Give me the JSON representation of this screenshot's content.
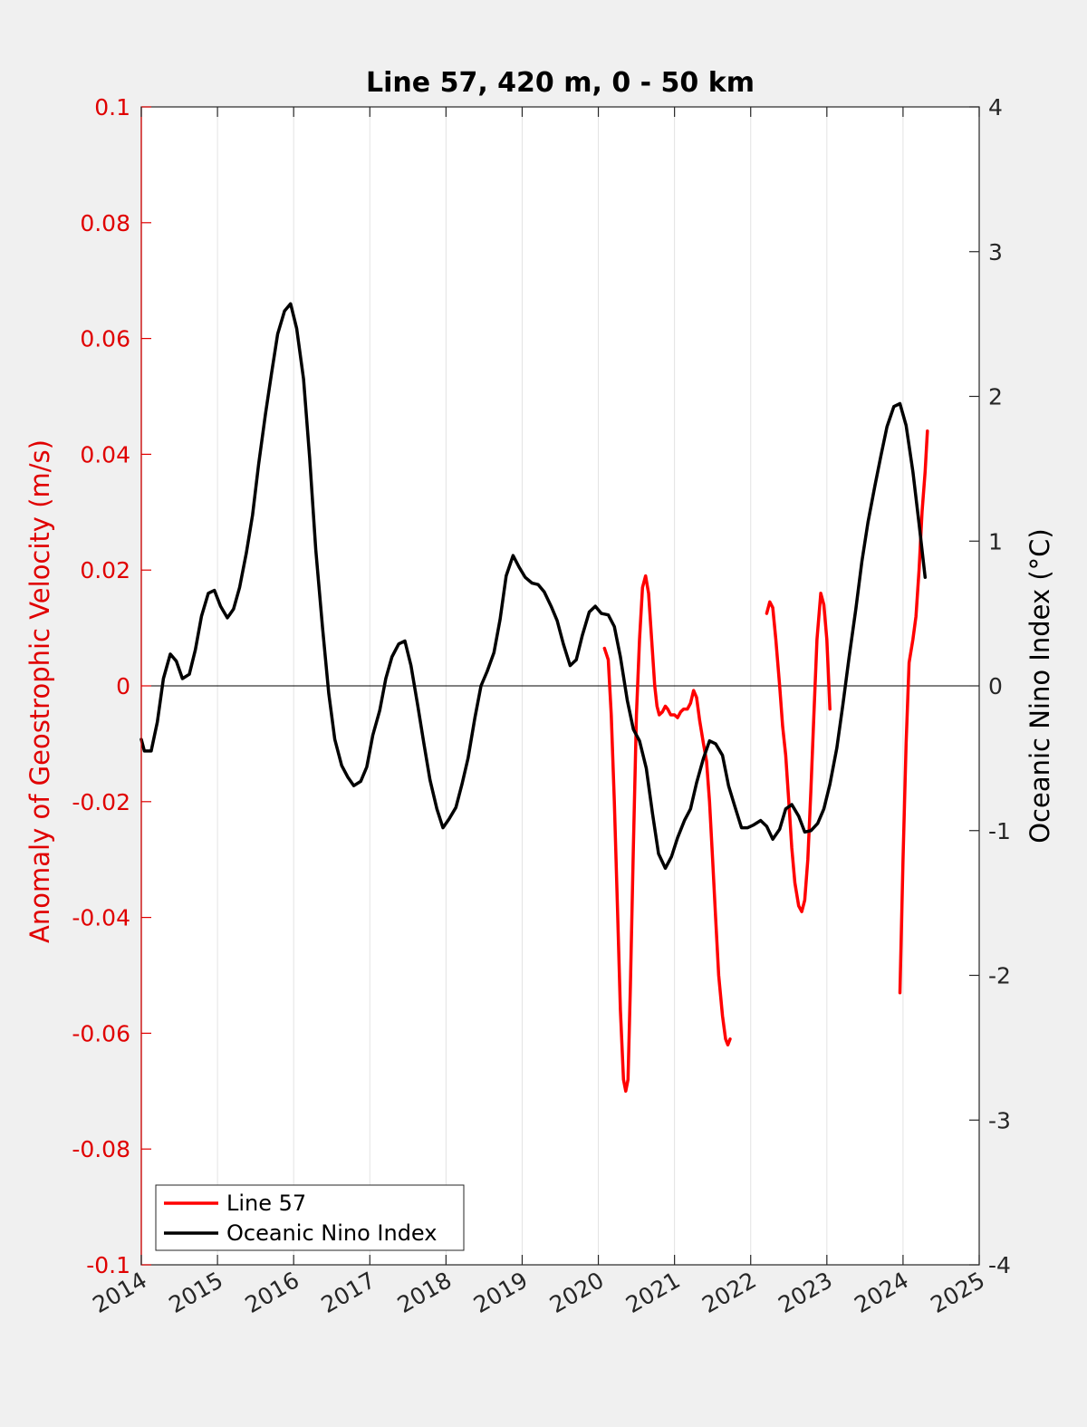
{
  "chart_data": {
    "type": "line",
    "title": "Line 57, 420 m, 0 - 50 km",
    "ylabel_left": "Anomaly of Geostrophic Velocity (m/s)",
    "ylabel_right": "Oceanic Nino Index (°C)",
    "xlim": [
      2014,
      2025
    ],
    "ylim_left": [
      -0.1,
      0.1
    ],
    "ylim_right": [
      -4,
      4
    ],
    "x_ticks": [
      "2014",
      "2015",
      "2016",
      "2017",
      "2018",
      "2019",
      "2020",
      "2021",
      "2022",
      "2023",
      "2024",
      "2025"
    ],
    "y_left_ticks": [
      "0.1",
      "0.08",
      "0.06",
      "0.04",
      "0.02",
      "0",
      "-0.02",
      "-0.04",
      "-0.06",
      "-0.08",
      "-0.1"
    ],
    "y_right_ticks": [
      "4",
      "3",
      "2",
      "1",
      "0",
      "-1",
      "-2",
      "-3",
      "-4"
    ],
    "grid": "vertical",
    "zero_line": true,
    "legend_position": "bottom-left",
    "colors": {
      "line57": "#ff0000",
      "oni": "#000000",
      "left_axis": "#e00000",
      "right_axis": "#262626"
    },
    "series": [
      {
        "name": "Line 57",
        "axis": "left",
        "color": "#ff0000",
        "segments": [
          [
            [
              2020.08,
              0.0065
            ],
            [
              2020.13,
              0.0045
            ],
            [
              2020.17,
              -0.005
            ],
            [
              2020.21,
              -0.02
            ],
            [
              2020.25,
              -0.038
            ],
            [
              2020.29,
              -0.056
            ],
            [
              2020.33,
              -0.068
            ],
            [
              2020.36,
              -0.07
            ],
            [
              2020.39,
              -0.068
            ],
            [
              2020.42,
              -0.052
            ],
            [
              2020.46,
              -0.028
            ],
            [
              2020.5,
              -0.005
            ],
            [
              2020.54,
              0.008
            ],
            [
              2020.58,
              0.017
            ],
            [
              2020.62,
              0.019
            ],
            [
              2020.66,
              0.016
            ],
            [
              2020.7,
              0.008
            ],
            [
              2020.74,
              0.0
            ],
            [
              2020.77,
              -0.0035
            ],
            [
              2020.8,
              -0.005
            ],
            [
              2020.84,
              -0.0045
            ],
            [
              2020.88,
              -0.0035
            ],
            [
              2020.91,
              -0.004
            ],
            [
              2020.95,
              -0.005
            ],
            [
              2021.0,
              -0.005
            ],
            [
              2021.04,
              -0.0055
            ],
            [
              2021.08,
              -0.0045
            ],
            [
              2021.12,
              -0.004
            ],
            [
              2021.17,
              -0.004
            ],
            [
              2021.21,
              -0.003
            ],
            [
              2021.25,
              -0.0008
            ],
            [
              2021.29,
              -0.002
            ],
            [
              2021.33,
              -0.006
            ],
            [
              2021.38,
              -0.01
            ],
            [
              2021.42,
              -0.013
            ],
            [
              2021.46,
              -0.02
            ],
            [
              2021.5,
              -0.03
            ],
            [
              2021.54,
              -0.04
            ],
            [
              2021.58,
              -0.05
            ],
            [
              2021.63,
              -0.057
            ],
            [
              2021.67,
              -0.061
            ],
            [
              2021.7,
              -0.062
            ],
            [
              2021.73,
              -0.061
            ]
          ],
          [
            [
              2022.21,
              0.0125
            ],
            [
              2022.25,
              0.0145
            ],
            [
              2022.29,
              0.0135
            ],
            [
              2022.33,
              0.008
            ],
            [
              2022.38,
              0.0
            ],
            [
              2022.42,
              -0.007
            ],
            [
              2022.46,
              -0.012
            ],
            [
              2022.5,
              -0.02
            ],
            [
              2022.54,
              -0.028
            ],
            [
              2022.58,
              -0.034
            ],
            [
              2022.63,
              -0.038
            ],
            [
              2022.67,
              -0.039
            ],
            [
              2022.71,
              -0.037
            ],
            [
              2022.75,
              -0.03
            ],
            [
              2022.79,
              -0.018
            ],
            [
              2022.83,
              -0.005
            ],
            [
              2022.87,
              0.008
            ],
            [
              2022.92,
              0.016
            ],
            [
              2022.96,
              0.014
            ],
            [
              2023.0,
              0.008
            ],
            [
              2023.04,
              -0.004
            ]
          ],
          [
            [
              2023.96,
              -0.053
            ],
            [
              2024.0,
              -0.03
            ],
            [
              2024.04,
              -0.01
            ],
            [
              2024.08,
              0.004
            ],
            [
              2024.13,
              0.008
            ],
            [
              2024.17,
              0.012
            ],
            [
              2024.21,
              0.02
            ],
            [
              2024.25,
              0.03
            ],
            [
              2024.29,
              0.037
            ],
            [
              2024.32,
              0.044
            ]
          ]
        ]
      },
      {
        "name": "Oceanic Nino Index",
        "axis": "right",
        "color": "#000000",
        "segments": [
          [
            [
              2014.0,
              -0.37
            ],
            [
              2014.04,
              -0.45
            ],
            [
              2014.13,
              -0.45
            ],
            [
              2014.21,
              -0.25
            ],
            [
              2014.29,
              0.05
            ],
            [
              2014.38,
              0.22
            ],
            [
              2014.46,
              0.17
            ],
            [
              2014.54,
              0.05
            ],
            [
              2014.63,
              0.08
            ],
            [
              2014.71,
              0.25
            ],
            [
              2014.79,
              0.48
            ],
            [
              2014.88,
              0.64
            ],
            [
              2014.96,
              0.66
            ],
            [
              2015.04,
              0.55
            ],
            [
              2015.13,
              0.47
            ],
            [
              2015.21,
              0.53
            ],
            [
              2015.29,
              0.68
            ],
            [
              2015.38,
              0.92
            ],
            [
              2015.46,
              1.18
            ],
            [
              2015.54,
              1.53
            ],
            [
              2015.63,
              1.88
            ],
            [
              2015.71,
              2.16
            ],
            [
              2015.79,
              2.43
            ],
            [
              2015.88,
              2.59
            ],
            [
              2015.96,
              2.64
            ],
            [
              2016.04,
              2.47
            ],
            [
              2016.13,
              2.12
            ],
            [
              2016.21,
              1.58
            ],
            [
              2016.29,
              0.94
            ],
            [
              2016.38,
              0.4
            ],
            [
              2016.46,
              -0.05
            ],
            [
              2016.54,
              -0.37
            ],
            [
              2016.63,
              -0.55
            ],
            [
              2016.71,
              -0.63
            ],
            [
              2016.79,
              -0.69
            ],
            [
              2016.88,
              -0.66
            ],
            [
              2016.96,
              -0.56
            ],
            [
              2017.04,
              -0.34
            ],
            [
              2017.13,
              -0.17
            ],
            [
              2017.21,
              0.05
            ],
            [
              2017.29,
              0.2
            ],
            [
              2017.38,
              0.29
            ],
            [
              2017.46,
              0.31
            ],
            [
              2017.54,
              0.14
            ],
            [
              2017.63,
              -0.14
            ],
            [
              2017.71,
              -0.4
            ],
            [
              2017.79,
              -0.65
            ],
            [
              2017.88,
              -0.85
            ],
            [
              2017.96,
              -0.98
            ],
            [
              2018.04,
              -0.92
            ],
            [
              2018.13,
              -0.84
            ],
            [
              2018.21,
              -0.68
            ],
            [
              2018.29,
              -0.5
            ],
            [
              2018.38,
              -0.22
            ],
            [
              2018.46,
              0.0
            ],
            [
              2018.54,
              0.1
            ],
            [
              2018.63,
              0.23
            ],
            [
              2018.71,
              0.46
            ],
            [
              2018.79,
              0.76
            ],
            [
              2018.88,
              0.9
            ],
            [
              2018.96,
              0.82
            ],
            [
              2019.04,
              0.75
            ],
            [
              2019.13,
              0.71
            ],
            [
              2019.21,
              0.7
            ],
            [
              2019.29,
              0.65
            ],
            [
              2019.38,
              0.55
            ],
            [
              2019.46,
              0.45
            ],
            [
              2019.54,
              0.29
            ],
            [
              2019.63,
              0.14
            ],
            [
              2019.71,
              0.18
            ],
            [
              2019.79,
              0.35
            ],
            [
              2019.88,
              0.51
            ],
            [
              2019.96,
              0.55
            ],
            [
              2020.04,
              0.5
            ],
            [
              2020.13,
              0.49
            ],
            [
              2020.21,
              0.41
            ],
            [
              2020.29,
              0.2
            ],
            [
              2020.38,
              -0.1
            ],
            [
              2020.46,
              -0.3
            ],
            [
              2020.54,
              -0.38
            ],
            [
              2020.63,
              -0.57
            ],
            [
              2020.71,
              -0.88
            ],
            [
              2020.79,
              -1.16
            ],
            [
              2020.88,
              -1.26
            ],
            [
              2020.96,
              -1.18
            ],
            [
              2021.04,
              -1.05
            ],
            [
              2021.13,
              -0.93
            ],
            [
              2021.21,
              -0.85
            ],
            [
              2021.29,
              -0.67
            ],
            [
              2021.38,
              -0.5
            ],
            [
              2021.46,
              -0.38
            ],
            [
              2021.54,
              -0.4
            ],
            [
              2021.63,
              -0.48
            ],
            [
              2021.71,
              -0.69
            ],
            [
              2021.79,
              -0.83
            ],
            [
              2021.88,
              -0.98
            ],
            [
              2021.96,
              -0.98
            ],
            [
              2022.04,
              -0.96
            ],
            [
              2022.13,
              -0.93
            ],
            [
              2022.21,
              -0.97
            ],
            [
              2022.29,
              -1.06
            ],
            [
              2022.38,
              -0.99
            ],
            [
              2022.46,
              -0.85
            ],
            [
              2022.54,
              -0.82
            ],
            [
              2022.63,
              -0.9
            ],
            [
              2022.71,
              -1.01
            ],
            [
              2022.79,
              -1.0
            ],
            [
              2022.88,
              -0.95
            ],
            [
              2022.96,
              -0.85
            ],
            [
              2023.04,
              -0.68
            ],
            [
              2023.13,
              -0.43
            ],
            [
              2023.21,
              -0.13
            ],
            [
              2023.29,
              0.19
            ],
            [
              2023.38,
              0.53
            ],
            [
              2023.46,
              0.86
            ],
            [
              2023.54,
              1.13
            ],
            [
              2023.63,
              1.38
            ],
            [
              2023.71,
              1.59
            ],
            [
              2023.79,
              1.79
            ],
            [
              2023.88,
              1.93
            ],
            [
              2023.96,
              1.95
            ],
            [
              2024.04,
              1.8
            ],
            [
              2024.13,
              1.48
            ],
            [
              2024.21,
              1.12
            ],
            [
              2024.29,
              0.75
            ]
          ]
        ]
      }
    ]
  }
}
